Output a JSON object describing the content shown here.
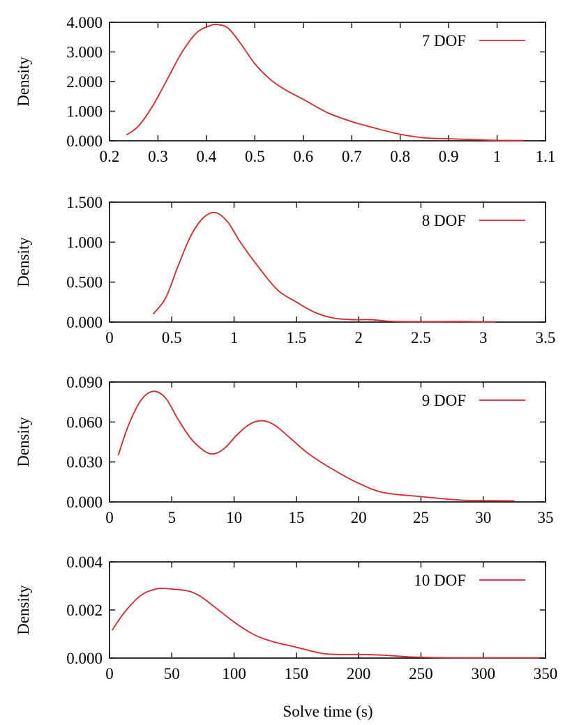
{
  "xlabel": "Solve time (s)",
  "chart_data": [
    {
      "type": "line",
      "ylabel": "Density",
      "xlim": [
        0.2,
        1.1
      ],
      "ylim": [
        0,
        4
      ],
      "xticks": [
        0.2,
        0.3,
        0.4,
        0.5,
        0.6,
        0.7,
        0.8,
        0.9,
        1,
        1.1
      ],
      "xtick_labels": [
        "0.2",
        "0.3",
        "0.4",
        "0.5",
        "0.6",
        "0.7",
        "0.8",
        "0.9",
        "1",
        "1.1"
      ],
      "yticks": [
        0,
        1,
        2,
        3,
        4
      ],
      "ytick_labels": [
        "0.000",
        "1.000",
        "2.000",
        "3.000",
        "4.000"
      ],
      "legend_position": "top-right",
      "color": "#d62728",
      "series": [
        {
          "name": "7 DOF",
          "x": [
            0.235,
            0.26,
            0.29,
            0.32,
            0.35,
            0.38,
            0.41,
            0.425,
            0.445,
            0.47,
            0.5,
            0.53,
            0.56,
            0.6,
            0.65,
            0.7,
            0.75,
            0.8,
            0.85,
            0.9,
            0.95,
            1.0,
            1.055
          ],
          "y": [
            0.2,
            0.5,
            1.2,
            2.1,
            3.0,
            3.65,
            3.9,
            3.92,
            3.8,
            3.3,
            2.6,
            2.1,
            1.75,
            1.4,
            0.95,
            0.65,
            0.42,
            0.22,
            0.1,
            0.07,
            0.04,
            0.015,
            0.01
          ]
        }
      ]
    },
    {
      "type": "line",
      "ylabel": "Density",
      "xlim": [
        0,
        3.5
      ],
      "ylim": [
        0,
        1.5
      ],
      "xticks": [
        0,
        0.5,
        1,
        1.5,
        2,
        2.5,
        3,
        3.5
      ],
      "xtick_labels": [
        "0",
        "0.5",
        "1",
        "1.5",
        "2",
        "2.5",
        "3",
        "3.5"
      ],
      "yticks": [
        0,
        0.5,
        1,
        1.5
      ],
      "ytick_labels": [
        "0.000",
        "0.500",
        "1.000",
        "1.500"
      ],
      "legend_position": "top-right",
      "color": "#d62728",
      "series": [
        {
          "name": "8 DOF",
          "x": [
            0.35,
            0.45,
            0.55,
            0.65,
            0.75,
            0.85,
            0.95,
            1.05,
            1.2,
            1.35,
            1.5,
            1.65,
            1.8,
            1.95,
            2.1,
            2.25,
            2.4,
            2.6,
            2.8,
            3.0,
            3.1
          ],
          "y": [
            0.1,
            0.3,
            0.7,
            1.07,
            1.3,
            1.37,
            1.25,
            1.0,
            0.68,
            0.4,
            0.25,
            0.12,
            0.05,
            0.03,
            0.03,
            0.01,
            0.005,
            0.004,
            0.006,
            0.003,
            0.002
          ]
        }
      ]
    },
    {
      "type": "line",
      "ylabel": "Density",
      "xlim": [
        0,
        35
      ],
      "ylim": [
        0,
        0.09
      ],
      "xticks": [
        0,
        5,
        10,
        15,
        20,
        25,
        30,
        35
      ],
      "xtick_labels": [
        "0",
        "5",
        "10",
        "15",
        "20",
        "25",
        "30",
        "35"
      ],
      "yticks": [
        0,
        0.03,
        0.06,
        0.09
      ],
      "ytick_labels": [
        "0.000",
        "0.030",
        "0.060",
        "0.090"
      ],
      "legend_position": "top-right",
      "color": "#d62728",
      "series": [
        {
          "name": "9 DOF",
          "x": [
            0.7,
            1.5,
            2.5,
            3.5,
            4.5,
            5.5,
            6.5,
            7.5,
            8.3,
            9.2,
            10.2,
            11.2,
            12.2,
            13.2,
            14.5,
            16,
            18,
            20,
            22,
            25,
            28,
            30,
            32.5
          ],
          "y": [
            0.035,
            0.057,
            0.076,
            0.083,
            0.078,
            0.062,
            0.048,
            0.039,
            0.036,
            0.04,
            0.05,
            0.058,
            0.061,
            0.058,
            0.048,
            0.036,
            0.024,
            0.014,
            0.007,
            0.004,
            0.0015,
            0.001,
            0.0008
          ]
        }
      ]
    },
    {
      "type": "line",
      "ylabel": "Density",
      "xlim": [
        0,
        350
      ],
      "ylim": [
        0,
        0.004
      ],
      "xticks": [
        0,
        50,
        100,
        150,
        200,
        250,
        300,
        350
      ],
      "xtick_labels": [
        "0",
        "50",
        "100",
        "150",
        "200",
        "250",
        "300",
        "350"
      ],
      "yticks": [
        0,
        0.002,
        0.004
      ],
      "ytick_labels": [
        "0.000",
        "0.002",
        "0.004"
      ],
      "legend_position": "top-right",
      "color": "#d62728",
      "series": [
        {
          "name": "10 DOF",
          "x": [
            2,
            12,
            25,
            38,
            50,
            62,
            72,
            85,
            100,
            115,
            130,
            150,
            170,
            185,
            200,
            220,
            240,
            260,
            280,
            300,
            320,
            345
          ],
          "y": [
            0.00115,
            0.0019,
            0.0026,
            0.00288,
            0.00287,
            0.0028,
            0.0026,
            0.0021,
            0.0015,
            0.001,
            0.0007,
            0.00045,
            0.0002,
            0.00015,
            0.00015,
            0.00012,
            5e-05,
            2e-05,
            1e-05,
            1e-05,
            1e-05,
            1e-05
          ]
        }
      ]
    }
  ]
}
